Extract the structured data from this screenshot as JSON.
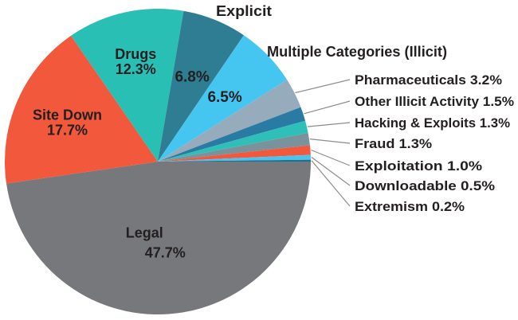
{
  "chart_data": {
    "type": "pie",
    "title": "",
    "legend": "none",
    "background": "#FFFFFF",
    "text_color": "#231F20",
    "leader_line_color": "#8C8C8C",
    "start_angle_deg": 0,
    "direction": "clockwise",
    "slices": [
      {
        "label": "Legal",
        "value": 47.7,
        "pct_label": "47.7%",
        "color": "#77787B",
        "label_mode": "inside-name-pct"
      },
      {
        "label": "Site Down",
        "value": 17.7,
        "pct_label": "17.7%",
        "color": "#F1583C",
        "label_mode": "inside-name-pct"
      },
      {
        "label": "Drugs",
        "value": 12.3,
        "pct_label": "12.3%",
        "color": "#2ABFB4",
        "label_mode": "inside-name-pct"
      },
      {
        "label": "Explicit",
        "value": 6.8,
        "pct_label": "6.8%",
        "color": "#2E7D92",
        "label_mode": "inside-pct-outside-name"
      },
      {
        "label": "Multiple Categories (Illicit)",
        "value": 6.5,
        "pct_label": "6.5%",
        "color": "#45C6F1",
        "label_mode": "inside-pct-outside-name"
      },
      {
        "label": "Pharmaceuticals",
        "value": 3.2,
        "pct_label": "3.2%",
        "color": "#96ABBB",
        "label_mode": "callout",
        "callout_text": "Pharmaceuticals 3.2%"
      },
      {
        "label": "Other Illicit Activity",
        "value": 1.5,
        "pct_label": "1.5%",
        "color": "#2A7BA3",
        "label_mode": "callout",
        "callout_text": "Other Illicit Activity 1.5%"
      },
      {
        "label": "Hacking & Exploits",
        "value": 1.3,
        "pct_label": "1.3%",
        "color": "#2EC0B8",
        "label_mode": "callout",
        "callout_text": "Hacking & Exploits 1.3%"
      },
      {
        "label": "Fraud",
        "value": 1.3,
        "pct_label": "1.3%",
        "color": "#7A929B",
        "label_mode": "callout",
        "callout_text": "Fraud 1.3%"
      },
      {
        "label": "Exploitation",
        "value": 1.0,
        "pct_label": "1.0%",
        "color": "#F1583C",
        "label_mode": "callout",
        "callout_text": "Exploitation 1.0%"
      },
      {
        "label": "Downloadable",
        "value": 0.5,
        "pct_label": "0.5%",
        "color": "#49C4F1",
        "label_mode": "callout",
        "callout_text": "Downloadable 0.5%"
      },
      {
        "label": "Extremism",
        "value": 0.2,
        "pct_label": "0.2%",
        "color": "#1F6E94",
        "label_mode": "callout",
        "callout_text": "Extremism 0.2%"
      }
    ]
  }
}
